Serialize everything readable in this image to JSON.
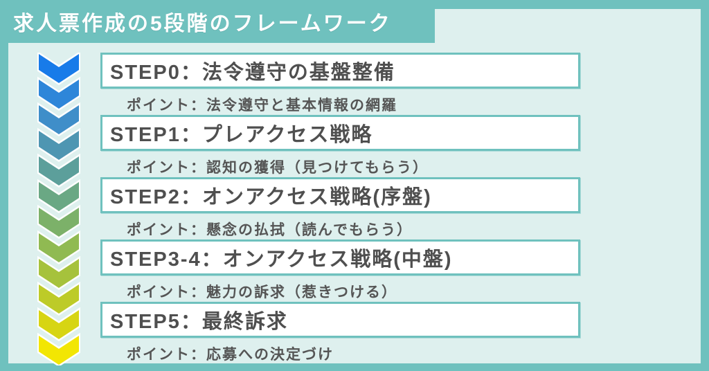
{
  "title": "求人票作成の5段階のフレームワーク",
  "steps": [
    {
      "title": "STEP0：法令遵守の基盤整備",
      "point": "ポイント：法令遵守と基本情報の網羅"
    },
    {
      "title": "STEP1：プレアクセス戦略",
      "point": "ポイント：認知の獲得（見つけてもらう）"
    },
    {
      "title": "STEP2：オンアクセス戦略(序盤)",
      "point": "ポイント：懸念の払拭（読んでもらう）"
    },
    {
      "title": "STEP3-4：オンアクセス戦略(中盤)",
      "point": "ポイント：魅力の訴求（惹きつける）"
    },
    {
      "title": "STEP5：最終訴求",
      "point": "ポイント：応募への決定づけ"
    }
  ],
  "arrow": {
    "direction": "down",
    "colors": [
      "#187be9",
      "#2e86d9",
      "#3f8ec9",
      "#4e96b2",
      "#5c9f9b",
      "#6aa884",
      "#7cb169",
      "#90ba52",
      "#a6c23c",
      "#bdcb28",
      "#d7d513",
      "#f2e603"
    ]
  },
  "colors": {
    "background_teal": "#6fc1be",
    "panel_mint": "#def0ee",
    "box_background": "#ffffff",
    "box_border": "#6fc1be",
    "step_text": "#4f4f4f",
    "title_text": "#ffffff"
  }
}
